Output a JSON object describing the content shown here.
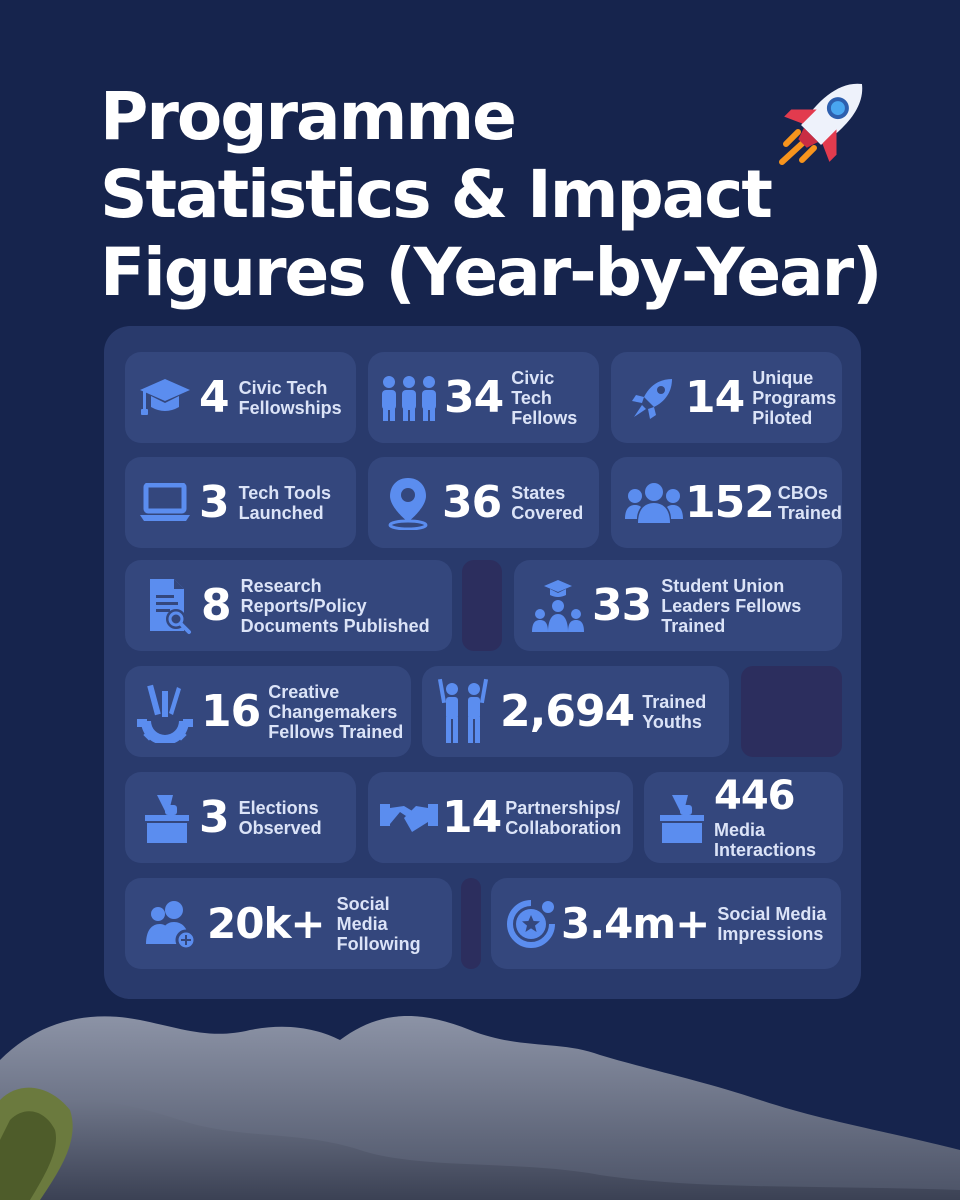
{
  "title": {
    "line1": "Programme",
    "line2": "Statistics & Impact",
    "line3": "Figures (Year-by-Year)"
  },
  "stats": [
    {
      "value": "4",
      "label": "Civic Tech\nFellowships",
      "icon": "graduation-cap-icon"
    },
    {
      "value": "34",
      "label": "Civic\nTech\nFellows",
      "icon": "people-group-icon"
    },
    {
      "value": "14",
      "label": "Unique\nPrograms\nPiloted",
      "icon": "rocket-icon"
    },
    {
      "value": "3",
      "label": "Tech Tools\nLaunched",
      "icon": "laptop-icon"
    },
    {
      "value": "36",
      "label": "States\nCovered",
      "icon": "map-pin-icon"
    },
    {
      "value": "152",
      "label": "CBOs\nTrained",
      "icon": "users-icon"
    },
    {
      "value": "8",
      "label": "Research\nReports/Policy\nDocuments Published",
      "icon": "document-search-icon"
    },
    {
      "value": "33",
      "label": "Student Union\nLeaders Fellows\nTrained",
      "icon": "student-leaders-icon"
    },
    {
      "value": "16",
      "label": "Creative\nChangemakers\nFellows Trained",
      "icon": "creative-gear-icon"
    },
    {
      "value": "2,694",
      "label": "Trained\nYouths",
      "icon": "youths-icon"
    },
    {
      "value": "3",
      "label": "Elections\nObserved",
      "icon": "ballot-box-icon"
    },
    {
      "value": "14",
      "label": "Partnerships/\nCollaboration",
      "icon": "handshake-icon"
    },
    {
      "value": "446",
      "label": "Media\nInteractions",
      "icon": "ballot-box-icon"
    },
    {
      "value": "20k+",
      "label": "Social\nMedia\nFollowing",
      "icon": "add-user-icon"
    },
    {
      "value": "3.4m+",
      "label": "Social Media\nImpressions",
      "icon": "star-badge-icon"
    }
  ],
  "colors": {
    "background": "#16244d",
    "panel": "#293a6c",
    "card": "#34477d",
    "icon": "#5b8def",
    "filler": "#2c2e5e"
  }
}
